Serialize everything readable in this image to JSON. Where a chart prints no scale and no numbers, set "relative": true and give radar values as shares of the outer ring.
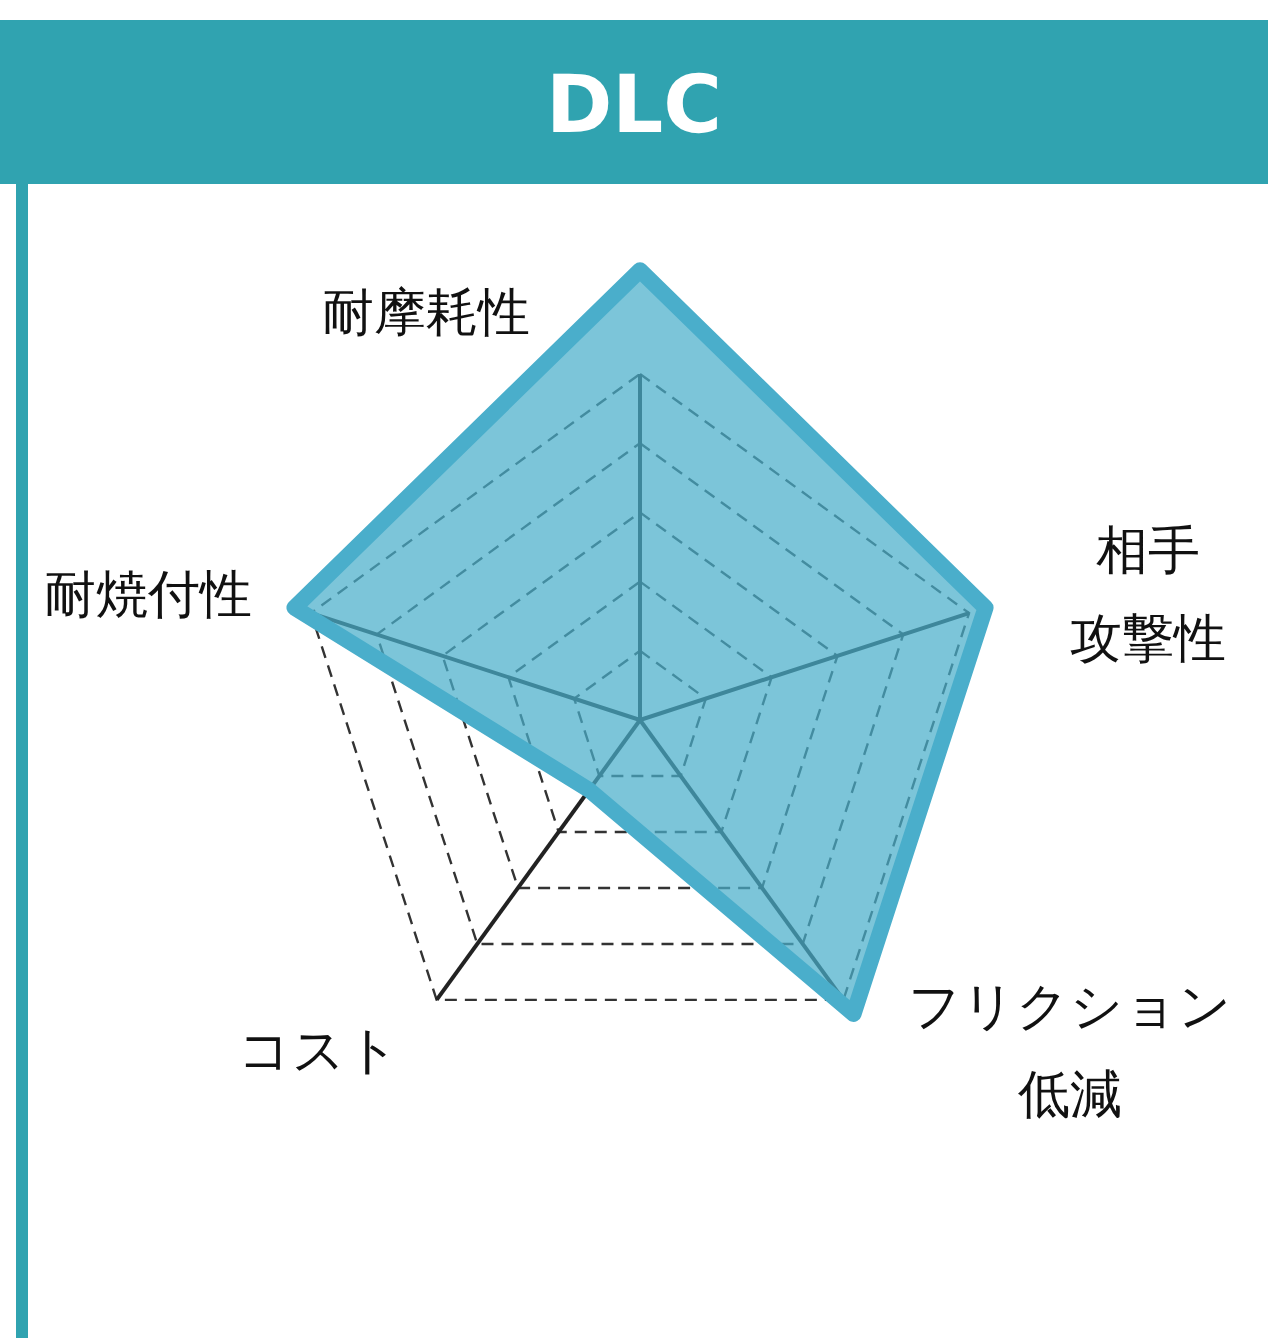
{
  "chart_data": {
    "type": "radar",
    "title": "DLC",
    "relative": true,
    "categories": [
      "耐摩耗性",
      "相手攻撃性",
      "フリクション低減",
      "コスト",
      "耐焼付性"
    ],
    "series": [
      {
        "color": "#4aaecb",
        "values": [
          1.3,
          1.05,
          1.05,
          0.25,
          1.05
        ]
      }
    ]
  }
}
